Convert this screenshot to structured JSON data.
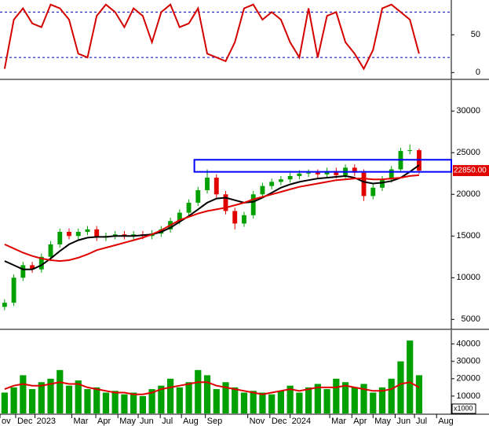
{
  "chart_data": [
    {
      "type": "line",
      "ylim": [
        -8,
        96
      ],
      "yticks": [
        0,
        50
      ],
      "reference_lines": [
        20,
        80
      ],
      "xlim": [
        -0.5,
        48.5
      ],
      "series": [
        {
          "color": "#d40000",
          "values": [
            5,
            70,
            85,
            65,
            60,
            90,
            85,
            70,
            25,
            20,
            75,
            90,
            80,
            60,
            85,
            75,
            40,
            80,
            90,
            60,
            65,
            85,
            25,
            20,
            15,
            40,
            85,
            90,
            70,
            80,
            70,
            40,
            20,
            85,
            20,
            75,
            80,
            40,
            25,
            5,
            30,
            85,
            90,
            80,
            70,
            25
          ]
        }
      ]
    },
    {
      "type": "candlestick",
      "ylim": [
        3900,
        33700
      ],
      "yticks": [
        5000,
        10000,
        15000,
        20000,
        25000,
        30000
      ],
      "xlim": [
        -0.5,
        48.5
      ],
      "up_color": "#00a000",
      "down_color": "#e00000",
      "open": [
        6500,
        7000,
        10000,
        11500,
        11000,
        12500,
        14000,
        15500,
        15000,
        15500,
        15800,
        14800,
        15000,
        15200,
        15000,
        15200,
        15000,
        15300,
        15800,
        16800,
        17800,
        19000,
        20500,
        22000,
        20000,
        18000,
        16500,
        17500,
        20000,
        21000,
        21500,
        21800,
        22200,
        22500,
        22600,
        22400,
        22800,
        22300,
        23200,
        22600,
        19800,
        20800,
        21800,
        23000,
        25200,
        25300
      ],
      "high": [
        7400,
        10400,
        11900,
        11900,
        12900,
        14400,
        15900,
        15900,
        15900,
        16200,
        16200,
        15400,
        15600,
        15600,
        15600,
        15600,
        15700,
        16200,
        17200,
        18200,
        19400,
        20900,
        23000,
        22400,
        20400,
        18400,
        17900,
        20400,
        21400,
        21900,
        22200,
        22600,
        22900,
        23000,
        23000,
        23200,
        23200,
        23600,
        23600,
        23000,
        21200,
        22200,
        23400,
        25600,
        26000,
        25500
      ],
      "low": [
        6100,
        6600,
        9600,
        10600,
        10600,
        12100,
        13600,
        14600,
        14600,
        15100,
        14400,
        14400,
        14600,
        14600,
        14600,
        14600,
        14600,
        14900,
        15400,
        16400,
        17400,
        18600,
        20100,
        19600,
        17600,
        15800,
        16100,
        17100,
        19600,
        20600,
        21100,
        21400,
        21800,
        22100,
        22000,
        22000,
        21900,
        21900,
        22200,
        19200,
        19400,
        20400,
        21400,
        22600,
        24800,
        22450
      ],
      "close": [
        7000,
        10000,
        11500,
        11000,
        12500,
        14000,
        15500,
        15000,
        15500,
        15800,
        14800,
        15000,
        15200,
        15000,
        15200,
        15000,
        15300,
        15800,
        16800,
        17800,
        19000,
        20500,
        22000,
        20000,
        18000,
        16500,
        17500,
        20000,
        21000,
        21500,
        21800,
        22200,
        22500,
        22600,
        22400,
        22800,
        22300,
        23200,
        22600,
        19800,
        20800,
        21800,
        23000,
        25200,
        25300,
        22850
      ],
      "series": [
        {
          "color": "#000000",
          "values": [
            12000,
            11500,
            11000,
            11000,
            11500,
            12300,
            13200,
            14000,
            14500,
            14800,
            14900,
            14900,
            15000,
            15000,
            15000,
            15100,
            15200,
            15500,
            16000,
            16700,
            17400,
            18200,
            19000,
            19500,
            19600,
            19300,
            19000,
            19100,
            19600,
            20200,
            20800,
            21200,
            21500,
            21700,
            21900,
            22000,
            22100,
            22200,
            22000,
            21500,
            21300,
            21400,
            21600,
            22000,
            22700,
            23500
          ]
        },
        {
          "color": "#e00000",
          "values": [
            14000,
            13500,
            13000,
            12600,
            12300,
            12100,
            12000,
            12100,
            12400,
            12800,
            13300,
            13600,
            13900,
            14200,
            14500,
            14800,
            15200,
            15700,
            16300,
            16900,
            17300,
            17700,
            18000,
            18200,
            18400,
            18700,
            19000,
            19400,
            19700,
            20000,
            20300,
            20600,
            20900,
            21100,
            21300,
            21500,
            21700,
            21800,
            21900,
            21900,
            21800,
            21800,
            21900,
            22000,
            22200,
            22300
          ]
        }
      ],
      "zone": {
        "xlim": [
          20.6,
          48.5
        ],
        "ylim": [
          22700,
          24150
        ],
        "color": "#0000ff"
      },
      "last_price": {
        "value": 22850,
        "label": "22850.00"
      }
    },
    {
      "type": "bar",
      "ylim": [
        0,
        48000
      ],
      "yticks": [
        10000,
        20000,
        30000,
        40000
      ],
      "unit_label": "x1000",
      "xlim": [
        -0.5,
        48.5
      ],
      "color": "#00a000",
      "values": [
        12000,
        15000,
        22000,
        14000,
        18000,
        20000,
        25000,
        16000,
        19000,
        14000,
        15000,
        12000,
        13000,
        11000,
        12000,
        10000,
        14000,
        16000,
        20000,
        15000,
        18000,
        25000,
        22000,
        14000,
        18000,
        15000,
        12000,
        13000,
        12000,
        11000,
        13000,
        16000,
        12000,
        15000,
        17000,
        14000,
        20000,
        18000,
        15000,
        17000,
        12000,
        15000,
        20000,
        30000,
        42000,
        22000
      ],
      "series": [
        {
          "color": "#e00000",
          "values": [
            14000,
            16000,
            17000,
            16000,
            16000,
            17000,
            18000,
            17000,
            17000,
            15000,
            14000,
            13000,
            12000,
            12000,
            11000,
            11000,
            12000,
            14000,
            15000,
            16000,
            17000,
            18000,
            18000,
            16000,
            15000,
            14000,
            13000,
            12000,
            11000,
            12000,
            13000,
            14000,
            13000,
            14000,
            15000,
            15000,
            15000,
            16000,
            15000,
            14000,
            13000,
            13000,
            14000,
            17000,
            18000,
            15000
          ]
        }
      ],
      "xticks": [
        {
          "value": -0.5,
          "label": "ov"
        },
        {
          "value": 1.2,
          "label": "Dec"
        },
        {
          "value": 3.3,
          "label": "2023"
        },
        {
          "value": 7.3,
          "label": "Mar"
        },
        {
          "value": 9.9,
          "label": "Apr"
        },
        {
          "value": 12.3,
          "label": "May"
        },
        {
          "value": 14.5,
          "label": "Jun"
        },
        {
          "value": 16.9,
          "label": "Jul"
        },
        {
          "value": 19.2,
          "label": "Aug"
        },
        {
          "value": 21.8,
          "label": "Sep"
        },
        {
          "value": 26.4,
          "label": "Nov"
        },
        {
          "value": 28.8,
          "label": "Dec"
        },
        {
          "value": 31.0,
          "label": "2024"
        },
        {
          "value": 35.3,
          "label": "Mar"
        },
        {
          "value": 37.7,
          "label": "Apr"
        },
        {
          "value": 40.0,
          "label": "May"
        },
        {
          "value": 42.4,
          "label": "Jun"
        },
        {
          "value": 44.5,
          "label": "Jul"
        },
        {
          "value": 46.9,
          "label": "Aug"
        }
      ]
    }
  ]
}
